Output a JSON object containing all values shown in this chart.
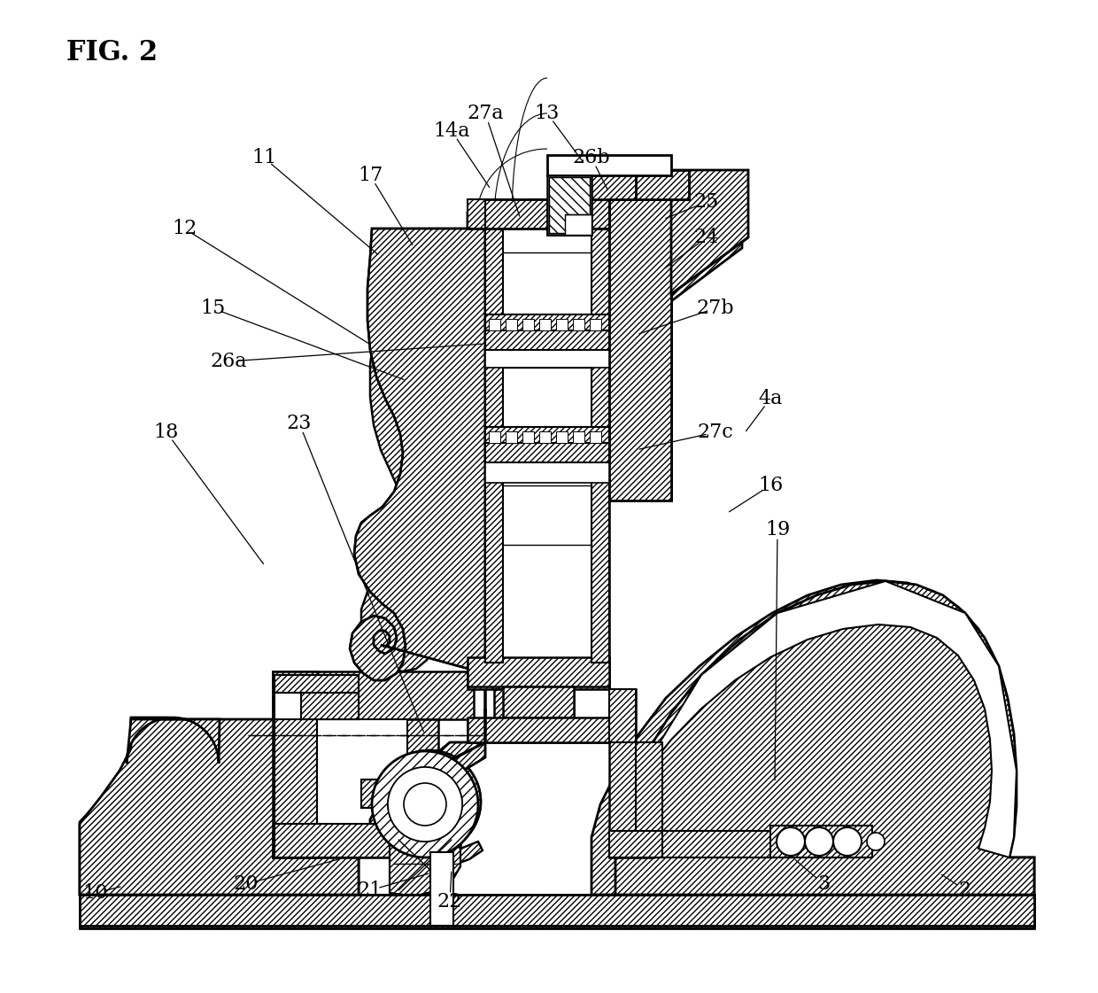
{
  "title": "FIG. 2",
  "bg": "#ffffff",
  "lc": "#000000",
  "figsize": [
    12.4,
    11.21
  ],
  "dpi": 100,
  "labels": [
    [
      "2",
      1090,
      1005
    ],
    [
      "3",
      930,
      998
    ],
    [
      "4a",
      870,
      450
    ],
    [
      "10",
      108,
      1008
    ],
    [
      "11",
      298,
      178
    ],
    [
      "12",
      208,
      258
    ],
    [
      "13",
      618,
      128
    ],
    [
      "14a",
      510,
      148
    ],
    [
      "15",
      240,
      348
    ],
    [
      "16",
      870,
      548
    ],
    [
      "17",
      418,
      198
    ],
    [
      "18",
      188,
      488
    ],
    [
      "19",
      878,
      598
    ],
    [
      "20",
      278,
      998
    ],
    [
      "21",
      418,
      1005
    ],
    [
      "22",
      508,
      1018
    ],
    [
      "23",
      338,
      478
    ],
    [
      "24",
      798,
      268
    ],
    [
      "25",
      798,
      228
    ],
    [
      "26a",
      258,
      408
    ],
    [
      "26b",
      668,
      178
    ],
    [
      "27a",
      548,
      128
    ],
    [
      "27b",
      808,
      348
    ],
    [
      "27c",
      808,
      488
    ]
  ],
  "leader_lines": [
    [
      "2",
      1090,
      1005,
      1060,
      985
    ],
    [
      "3",
      930,
      998,
      895,
      968
    ],
    [
      "4a",
      870,
      450,
      840,
      490
    ],
    [
      "10",
      108,
      1008,
      140,
      1000
    ],
    [
      "11",
      298,
      178,
      430,
      290
    ],
    [
      "12",
      208,
      258,
      420,
      390
    ],
    [
      "13",
      618,
      128,
      660,
      185
    ],
    [
      "14a",
      510,
      148,
      555,
      215
    ],
    [
      "15",
      240,
      348,
      460,
      430
    ],
    [
      "16",
      870,
      548,
      820,
      580
    ],
    [
      "17",
      418,
      198,
      468,
      280
    ],
    [
      "18",
      188,
      488,
      300,
      640
    ],
    [
      "19",
      878,
      598,
      875,
      885
    ],
    [
      "20",
      278,
      998,
      390,
      968
    ],
    [
      "21",
      418,
      1005,
      488,
      985
    ],
    [
      "22",
      508,
      1018,
      510,
      980
    ],
    [
      "23",
      338,
      478,
      480,
      830
    ],
    [
      "24",
      798,
      268,
      748,
      305
    ],
    [
      "25",
      798,
      228,
      748,
      248
    ],
    [
      "26a",
      258,
      408,
      548,
      388
    ],
    [
      "26b",
      668,
      178,
      688,
      218
    ],
    [
      "27a",
      548,
      128,
      588,
      248
    ],
    [
      "27b",
      808,
      348,
      718,
      378
    ],
    [
      "27c",
      808,
      488,
      718,
      508
    ]
  ]
}
